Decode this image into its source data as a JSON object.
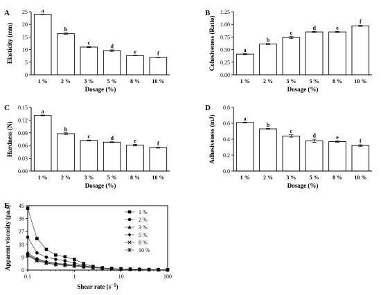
{
  "chart_data": [
    {
      "panel": "A",
      "type": "bar",
      "categories": [
        "1 %",
        "2 %",
        "3 %",
        "5 %",
        "8 %",
        "10 %"
      ],
      "values": [
        24.0,
        16.3,
        11.0,
        9.6,
        7.6,
        6.9
      ],
      "errors": [
        0.1,
        0.3,
        0.2,
        0.3,
        0.1,
        0.1
      ],
      "letters": [
        "a",
        "b",
        "c",
        "d",
        "e",
        "f"
      ],
      "xlabel": "Dosage (%)",
      "ylabel": "Elasticity (mm)",
      "ylim": [
        0,
        25
      ],
      "yticks": [
        0,
        5,
        10,
        15,
        20,
        25
      ]
    },
    {
      "panel": "B",
      "type": "bar",
      "categories": [
        "1 %",
        "2 %",
        "3 %",
        "5 %",
        "8 %",
        "10 %"
      ],
      "values": [
        0.41,
        0.61,
        0.74,
        0.85,
        0.85,
        0.97
      ],
      "errors": [
        0.01,
        0.01,
        0.02,
        0.01,
        0.01,
        0.01
      ],
      "letters": [
        "a",
        "b",
        "c",
        "d",
        "e",
        "f"
      ],
      "xlabel": "Dosage (%)",
      "ylabel": "Cohesiveness (Ratio)",
      "ylim": [
        0,
        1.25
      ],
      "yticks": [
        "0.00",
        "0.25",
        "0.50",
        "0.75",
        "1.00",
        "1.25"
      ]
    },
    {
      "panel": "C",
      "type": "bar",
      "categories": [
        "1 %",
        "2 %",
        "3 %",
        "5 %",
        "8 %",
        "10 %"
      ],
      "values": [
        0.131,
        0.088,
        0.072,
        0.068,
        0.061,
        0.055
      ],
      "errors": [
        0.001,
        0.002,
        0.001,
        0.001,
        0.002,
        0.001
      ],
      "letters": [
        "a",
        "b",
        "c",
        "d",
        "e",
        "f"
      ],
      "xlabel": "Dosage (%)",
      "ylabel": "Hardness (N)",
      "ylim": [
        0,
        0.15
      ],
      "yticks": [
        "0.00",
        "0.03",
        "0.06",
        "0.09",
        "0.12",
        "0.15"
      ]
    },
    {
      "panel": "D",
      "type": "bar",
      "categories": [
        "1 %",
        "2 %",
        "3 %",
        "5 %",
        "8 %",
        "10 %"
      ],
      "values": [
        0.61,
        0.53,
        0.44,
        0.38,
        0.37,
        0.32
      ],
      "errors": [
        0.005,
        0.005,
        0.015,
        0.02,
        0.01,
        0.01
      ],
      "letters": [
        "a",
        "b",
        "c",
        "d",
        "e",
        "f"
      ],
      "xlabel": "Dosage (%)",
      "ylabel": "Adhesiveness (mJ)",
      "ylim": [
        0,
        0.8
      ],
      "yticks": [
        "0.0",
        "0.2",
        "0.4",
        "0.6",
        "0.8"
      ]
    },
    {
      "panel": "E",
      "type": "line",
      "xscale": "log",
      "xlabel": "Shear rate (s",
      "xlabel_sup": "−1",
      "xlabel_end": ")",
      "ylabel": "Apparent viscosity (pa.s)",
      "xlim": [
        0.1,
        100
      ],
      "ylim": [
        0,
        45
      ],
      "xticks": [
        "0.1",
        "1",
        "10",
        "100"
      ],
      "yticks": [
        0,
        9,
        18,
        27,
        36,
        45
      ],
      "legend_position": "top-right",
      "x": [
        0.1,
        0.158,
        0.251,
        0.398,
        0.631,
        1.0,
        1.585,
        2.512,
        3.981,
        6.31,
        10,
        15.85,
        25.12,
        39.81,
        63.1,
        100
      ],
      "series": [
        {
          "name": "1 %",
          "marker": "square",
          "values": [
            43.2,
            22.0,
            14.5,
            10.5,
            9.3,
            7.5,
            4.5,
            2.5,
            1.6,
            1.1,
            0.8,
            0.6,
            0.45,
            0.35,
            0.3,
            0.25
          ]
        },
        {
          "name": "2 %",
          "marker": "circle",
          "values": [
            23.0,
            12.0,
            9.0,
            7.5,
            6.5,
            5.0,
            3.2,
            2.0,
            1.4,
            1.0,
            0.7,
            0.55,
            0.45,
            0.35,
            0.3,
            0.25
          ]
        },
        {
          "name": "3 %",
          "marker": "triangle",
          "values": [
            11.0,
            7.5,
            5.5,
            4.5,
            4.0,
            3.5,
            2.6,
            1.8,
            1.3,
            0.9,
            0.7,
            0.55,
            0.45,
            0.35,
            0.3,
            0.25
          ]
        },
        {
          "name": "5 %",
          "marker": "diamond",
          "values": [
            12.0,
            8.0,
            6.0,
            4.8,
            4.2,
            3.6,
            2.8,
            1.9,
            1.3,
            0.9,
            0.7,
            0.55,
            0.45,
            0.35,
            0.3,
            0.25
          ]
        },
        {
          "name": "8 %",
          "marker": "x",
          "values": [
            10.5,
            7.0,
            5.0,
            4.0,
            3.5,
            3.0,
            2.4,
            1.7,
            1.2,
            0.9,
            0.7,
            0.55,
            0.45,
            0.35,
            0.3,
            0.25
          ]
        },
        {
          "name": "10 %",
          "marker": "star",
          "values": [
            10.0,
            6.5,
            4.8,
            3.8,
            3.3,
            2.8,
            2.2,
            1.6,
            1.2,
            0.9,
            0.7,
            0.55,
            0.45,
            0.35,
            0.3,
            0.25
          ]
        }
      ]
    }
  ]
}
